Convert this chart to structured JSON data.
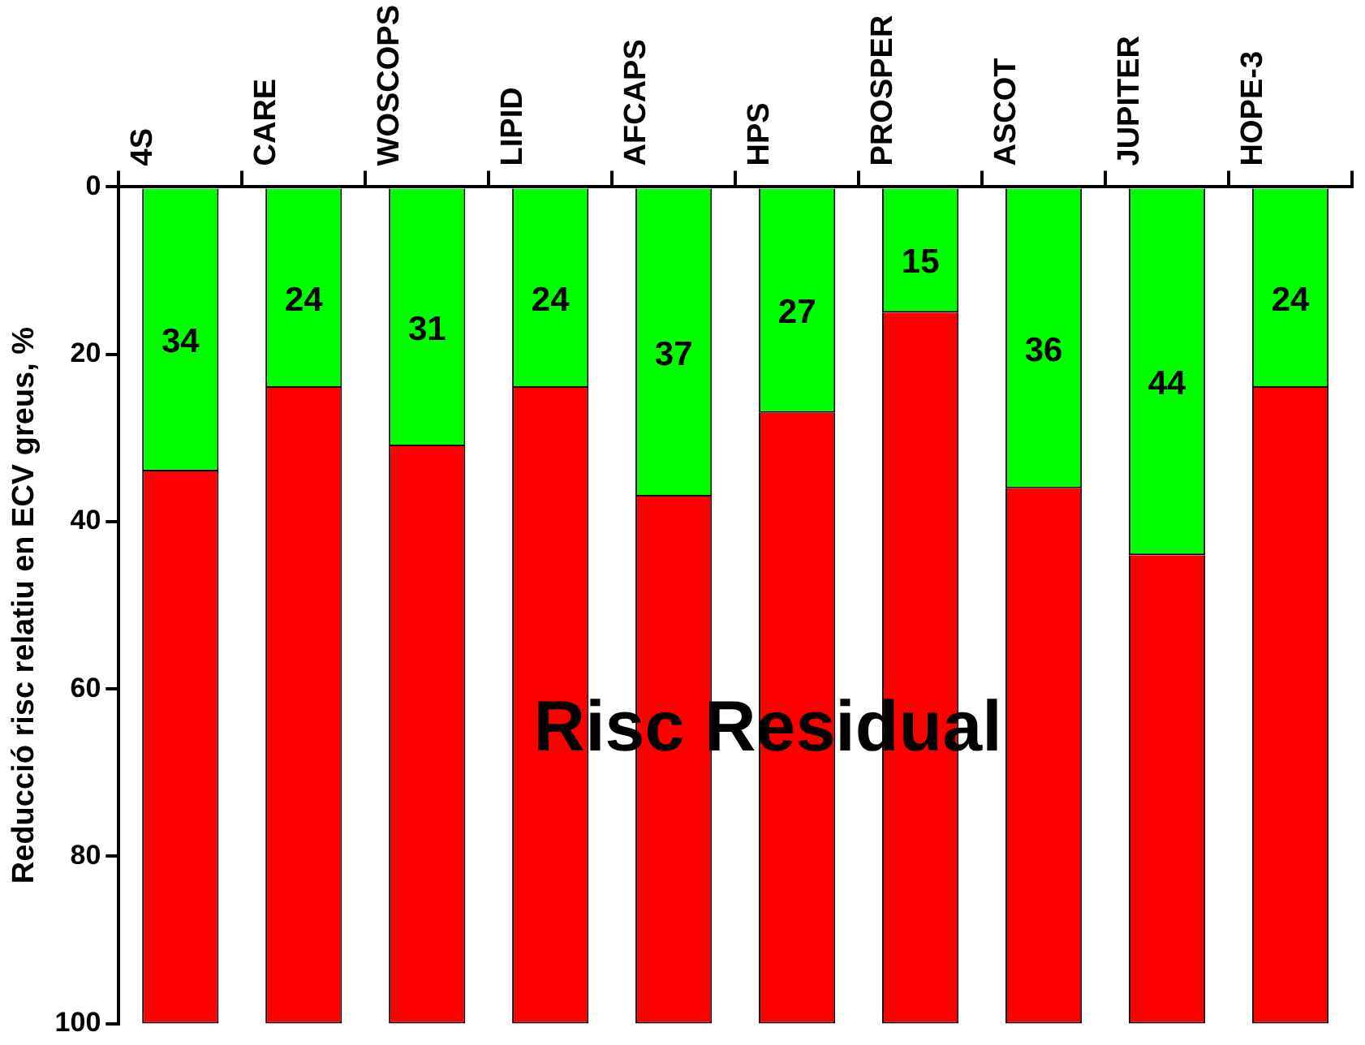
{
  "chart_data": {
    "type": "bar",
    "stacked": true,
    "ylabel": "Reducció risc relatiu en ECV greus, %",
    "categories": [
      "4S",
      "CARE",
      "WOSCOPS",
      "LIPID",
      "AFCAPS",
      "HPS",
      "PROSPER",
      "ASCOT",
      "JUPITER",
      "HOPE-3"
    ],
    "series": [
      {
        "color": "#00ff00",
        "values": [
          34,
          24,
          31,
          24,
          37,
          27,
          15,
          36,
          44,
          24
        ],
        "value_labels": [
          "34",
          "24",
          "31",
          "24",
          "37",
          "27",
          "15",
          "36",
          "44",
          "24"
        ]
      },
      {
        "color": "#ff0000",
        "values": [
          66,
          76,
          69,
          76,
          63,
          73,
          85,
          64,
          56,
          76
        ]
      }
    ],
    "ylim": [
      100,
      0
    ],
    "yticks": [
      0,
      20,
      40,
      60,
      80,
      100
    ],
    "grid": false,
    "legend": false,
    "annotations": [
      "Risc Residual"
    ]
  }
}
